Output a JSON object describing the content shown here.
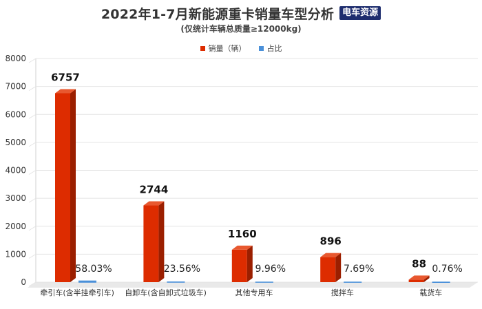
{
  "title": "2022年1-7月新能源重卡销量车型分析",
  "logo_text": "电车资源",
  "subtitle": "(仅统计车辆总质量≥12000kg)",
  "legend": [
    {
      "label": "销量（辆）",
      "color": "#dd2c00"
    },
    {
      "label": "占比",
      "color": "#4a90d9"
    }
  ],
  "chart_data": {
    "type": "bar",
    "title": "2022年1-7月新能源重卡销量车型分析",
    "subtitle": "(仅统计车辆总质量≥12000kg)",
    "categories": [
      "牵引车(含半挂牵引车)",
      "自卸车(含自卸式垃圾车)",
      "其他专用车",
      "搅拌车",
      "载货车"
    ],
    "series": [
      {
        "name": "销量（辆）",
        "values": [
          6757,
          2744,
          1160,
          896,
          88
        ],
        "labels": [
          "6757",
          "2744",
          "1160",
          "896",
          "88"
        ],
        "color": "#dd2c00"
      },
      {
        "name": "占比",
        "values": [
          58.03,
          23.56,
          9.96,
          7.69,
          0.76
        ],
        "labels": [
          "58.03%",
          "23.56%",
          "9.96%",
          "7.69%",
          "0.76%"
        ],
        "color": "#4a90d9"
      }
    ],
    "yticks": [
      "0",
      "1000",
      "2000",
      "3000",
      "4000",
      "5000",
      "6000",
      "7000",
      "8000"
    ],
    "ylim": [
      0,
      8000
    ],
    "grid": true,
    "legend_position": "top-center",
    "style": "3d-bar"
  }
}
